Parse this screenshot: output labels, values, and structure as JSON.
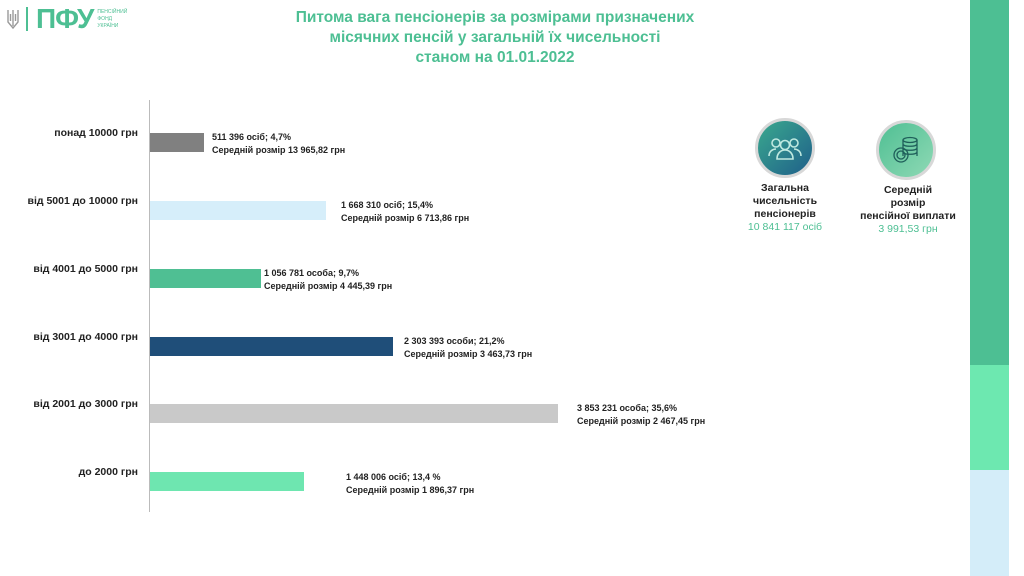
{
  "logo": {
    "abbr": "ПФУ",
    "name": "ПЕНСІЙНИЙ ФОНД УКРАЇНИ"
  },
  "title": [
    "Питома вага пенсіонерів за розмірами призначених",
    "місячних пенсій у загальній їх чисельності",
    "станом на 01.01.2022"
  ],
  "stats": [
    {
      "label": [
        "Загальна",
        "чисельність",
        "пенсіонерів"
      ],
      "value": "10 841 117 осіб",
      "icon": "people-icon"
    },
    {
      "label": [
        "Середній",
        "розмір",
        "пенсійної виплати"
      ],
      "value": "3 991,53 грн",
      "icon": "coins-icon"
    }
  ],
  "chart_data": {
    "type": "bar",
    "orientation": "horizontal",
    "categories": [
      "понад 10000 грн",
      "від 5001 до 10000 грн",
      "від 4001 до 5000 грн",
      "від 3001 до 4000 грн",
      "від 2001 до 3000 грн",
      "до 2000 грн"
    ],
    "values": [
      4.7,
      15.4,
      9.7,
      21.2,
      35.6,
      13.4
    ],
    "colors": [
      "#808080",
      "#d6eefa",
      "#4fbf93",
      "#1f4e79",
      "#c9c9c9",
      "#6ee6b0"
    ],
    "labels": [
      [
        "511 396 осіб;  4,7%",
        "Середній розмір 13 965,82 грн"
      ],
      [
        "1 668 310 осіб; 15,4%",
        "Середній розмір 6 713,86 грн"
      ],
      [
        "1 056 781 особа; 9,7%",
        "Середній розмір 4 445,39 грн"
      ],
      [
        "2 303 393 особи; 21,2%",
        "Середній розмір 3 463,73 грн"
      ],
      [
        "3 853 231 особа; 35,6%",
        "Середній розмір 2 467,45 грн"
      ],
      [
        "1 448 006 осіб; 13,4 %",
        "Середній розмір 1 896,37 грн"
      ]
    ],
    "grid": false
  },
  "side_colors": [
    "#4dbf93",
    "#6de8b0",
    "#d4edf9"
  ]
}
